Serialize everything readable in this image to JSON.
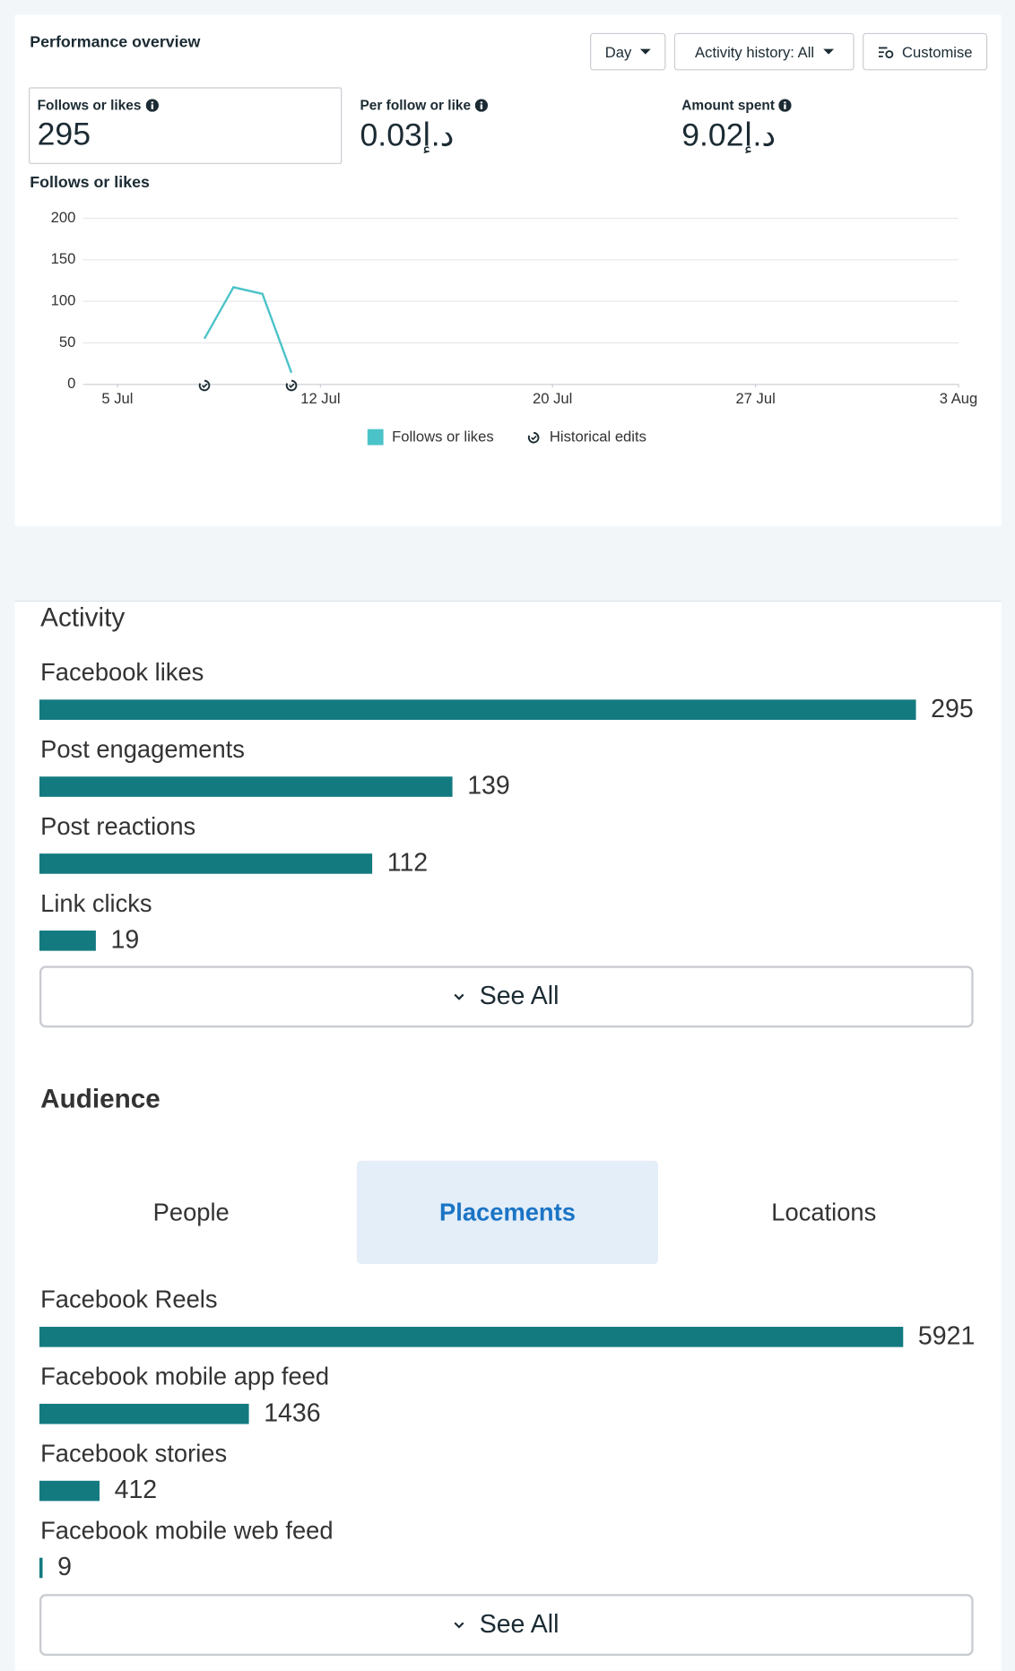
{
  "performance": {
    "title": "Performance overview",
    "controls": [
      "Day",
      "Activity history: All",
      "Customise"
    ],
    "metrics": [
      {
        "label": "Follows or likes",
        "value": "295"
      },
      {
        "label": "Per follow or like",
        "value": "0.03د.إ"
      },
      {
        "label": "Amount spent",
        "value": "9.02د.إ"
      }
    ]
  },
  "chart_data": [
    {
      "type": "line",
      "title": "Follows or likes",
      "x": [
        "8 Jul",
        "9 Jul",
        "10 Jul",
        "11 Jul"
      ],
      "series": [
        {
          "name": "Follows or likes",
          "color": "#4bc3c8",
          "values": [
            55,
            117,
            109,
            14
          ]
        }
      ],
      "xlim": [
        "4 Jul",
        "3 Aug"
      ],
      "xticks": [
        "5 Jul",
        "12 Jul",
        "20 Jul",
        "27 Jul",
        "3 Aug"
      ],
      "ylim": [
        0,
        200
      ],
      "yticks": [
        0,
        50,
        100,
        150,
        200
      ],
      "grid": true,
      "historical_edits": {
        "label": "Historical edits",
        "dates": [
          "8 Jul",
          "11 Jul"
        ]
      }
    },
    {
      "type": "bar",
      "orientation": "horizontal",
      "title": "Activity",
      "categories": [
        "Facebook likes",
        "Post engagements",
        "Post reactions",
        "Link clicks"
      ],
      "values": [
        295,
        139,
        112,
        19
      ],
      "color": "#137a7f",
      "xlim": [
        0,
        295
      ]
    },
    {
      "type": "bar",
      "orientation": "horizontal",
      "title": "Audience",
      "categories": [
        "Facebook Reels",
        "Facebook mobile app feed",
        "Facebook stories",
        "Facebook mobile web feed"
      ],
      "values": [
        5921,
        1436,
        412,
        9
      ],
      "color": "#137a7f",
      "xlim": [
        0,
        5921
      ]
    }
  ],
  "activity": {
    "see_all": "See All"
  },
  "audience": {
    "tabs": [
      "People",
      "Placements",
      "Locations"
    ],
    "active_tab": "Placements",
    "see_all": "See All"
  }
}
